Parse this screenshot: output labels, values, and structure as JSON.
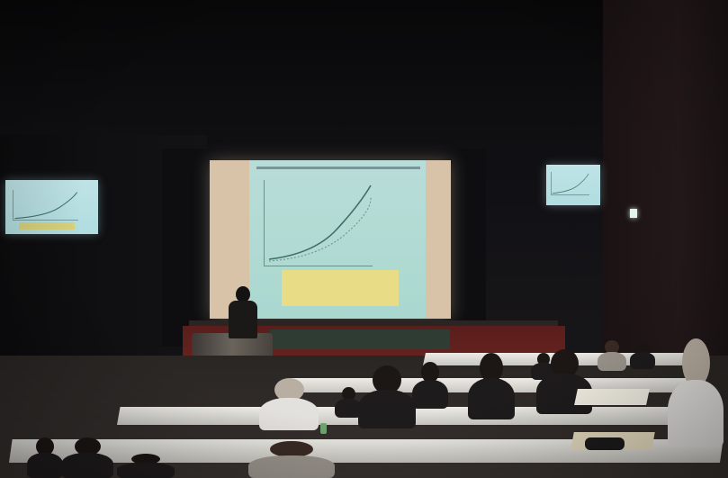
{
  "scene": {
    "colors": {
      "wall": "#0b0b0d",
      "screen_glow": "#b9ddd8",
      "podium": "#6a2420",
      "desk": "#ecebe6",
      "slide_note": "#e8dc86"
    },
    "screens": [
      {
        "name": "main-projection"
      },
      {
        "name": "left-monitor"
      },
      {
        "name": "right-monitor"
      }
    ]
  }
}
